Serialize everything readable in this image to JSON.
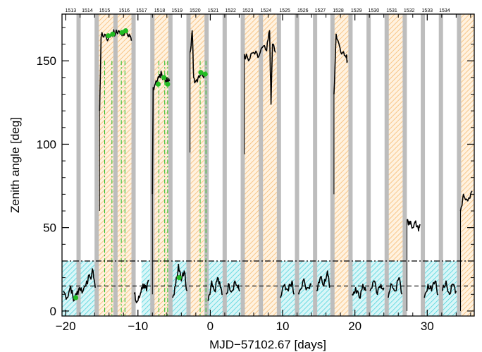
{
  "chart_data": {
    "type": "line",
    "title": "",
    "xlabel": "MJD−57102.67 [days]",
    "ylabel": "Zenith angle [deg]",
    "xlim": [
      -20.5,
      36.5
    ],
    "ylim": [
      -3,
      178
    ],
    "x_ticks": [
      -20,
      -10,
      0,
      10,
      20,
      30
    ],
    "x_tick_labels": [
      "−20",
      "−10",
      "0",
      "10",
      "20",
      "30"
    ],
    "y_ticks": [
      0,
      50,
      100,
      150
    ],
    "y_tick_labels": [
      "0",
      "50",
      "100",
      "150"
    ],
    "grid": false,
    "legend": "none",
    "run_numbers": [
      "1513",
      "1514",
      "1515",
      "1516",
      "1517",
      "1518",
      "1519",
      "1520",
      "1521",
      "1522",
      "1523",
      "1524",
      "1525",
      "1526",
      "1527",
      "1528",
      "1529",
      "1530",
      "1531",
      "1532",
      "1533",
      "1534"
    ],
    "run_label_x": [
      -19.3,
      -17.0,
      -14.6,
      -11.9,
      -9.5,
      -7.0,
      -4.6,
      -2.1,
      0.4,
      2.8,
      5.2,
      7.7,
      10.3,
      12.8,
      15.2,
      17.7,
      20.2,
      22.6,
      25.1,
      27.5,
      30.0,
      32.4
    ],
    "gray_bands": [
      [
        -18.5,
        -18.0
      ],
      [
        -16.0,
        -15.5
      ],
      [
        -13.4,
        -13.0
      ],
      [
        -10.9,
        -10.5
      ],
      [
        -8.3,
        -7.9
      ],
      [
        -5.8,
        -5.4
      ],
      [
        -3.3,
        -2.9
      ],
      [
        -0.8,
        -0.4
      ],
      [
        1.7,
        2.1
      ],
      [
        4.2,
        4.6
      ],
      [
        6.7,
        7.1
      ],
      [
        9.2,
        9.6
      ],
      [
        11.7,
        12.1
      ],
      [
        14.2,
        14.6
      ],
      [
        16.6,
        17.0
      ],
      [
        19.1,
        19.5
      ],
      [
        21.6,
        22.0
      ],
      [
        24.1,
        24.5
      ],
      [
        26.6,
        27.0
      ],
      [
        29.1,
        29.5
      ],
      [
        31.6,
        32.0
      ],
      [
        34.1,
        34.5
      ]
    ],
    "orange_hatch_regions": [
      [
        -15.5,
        -10.9
      ],
      [
        -7.9,
        -5.8
      ],
      [
        -2.9,
        -0.8
      ],
      [
        4.6,
        9.2
      ],
      [
        17.0,
        19.1
      ],
      [
        24.5,
        26.6
      ],
      [
        34.5,
        36.5
      ]
    ],
    "cyan_hatch_y_range": [
      0,
      30
    ],
    "cyan_hatch_regions": [
      [
        -20.5,
        -15.5
      ],
      [
        -9.5,
        -7.9
      ],
      [
        -5.4,
        -2.9
      ],
      [
        -0.8,
        4.2
      ],
      [
        9.6,
        14.2
      ],
      [
        14.6,
        16.6
      ],
      [
        19.5,
        21.6
      ],
      [
        22.0,
        24.1
      ],
      [
        24.5,
        26.6
      ],
      [
        29.5,
        31.6
      ],
      [
        32.0,
        34.1
      ]
    ],
    "green_dashed_x": [
      -14.6,
      -13.6,
      -12.3,
      -11.8,
      -7.1,
      -6.3,
      -5.9,
      -1.4,
      -0.6
    ],
    "hlines": [
      {
        "y": 30,
        "style": "dash-dot"
      },
      {
        "y": 15,
        "style": "dash"
      }
    ],
    "series": [
      {
        "color": "#000000",
        "segments": [
          {
            "x": [
              -20.3,
              -19.8,
              -19.3,
              -18.9,
              -18.5,
              -18.1,
              -17.6,
              -17.1,
              -16.6,
              -16.2,
              -15.9
            ],
            "y": [
              12,
              8,
              15,
              6,
              10,
              14,
              12,
              18,
              20,
              24,
              14
            ]
          },
          {
            "x": [
              -15.3,
              -15.1,
              -14.6,
              -14.1,
              -13.6,
              -13.1,
              -12.7,
              -12.2,
              -11.7,
              -11.2,
              -10.9
            ],
            "y": [
              120,
              164,
              166,
              163,
              167,
              166,
              168,
              165,
              169,
              166,
              162
            ]
          },
          {
            "x": [
              -10.5,
              -10.2,
              -9.8,
              -9.5,
              -9.1,
              -8.8,
              -8.5
            ],
            "y": [
              10,
              5,
              8,
              14,
              16,
              12,
              18
            ]
          },
          {
            "x": [
              -8.0,
              -7.9,
              -7.5,
              -7.1,
              -6.7,
              -6.3,
              -5.9,
              -5.6
            ],
            "y": [
              70,
              134,
              138,
              140,
              142,
              139,
              137,
              138
            ]
          },
          {
            "x": [
              -5.2,
              -4.8,
              -4.4,
              -4.0,
              -3.6,
              -3.2
            ],
            "y": [
              8,
              15,
              28,
              18,
              24,
              12
            ]
          },
          {
            "x": [
              -2.8,
              -2.5,
              -2.3,
              -2.0,
              -1.6,
              -1.2,
              -0.8
            ],
            "y": [
              155,
              168,
              140,
              138,
              141,
              143,
              142
            ]
          },
          {
            "x": [
              -0.3,
              0.2,
              0.6,
              1.0,
              1.4,
              1.7
            ],
            "y": [
              6,
              18,
              12,
              20,
              14,
              10
            ]
          },
          {
            "x": [
              2.2,
              2.6,
              3.0,
              3.4,
              3.8,
              4.1
            ],
            "y": [
              10,
              16,
              12,
              18,
              14,
              12
            ]
          },
          {
            "x": [
              4.7,
              5.3,
              6.0,
              6.6,
              7.2,
              7.8,
              8.2,
              8.4,
              8.6,
              9.0
            ],
            "y": [
              154,
              150,
              155,
              152,
              158,
              156,
              168,
              124,
              160,
              155
            ]
          },
          {
            "x": [
              9.7,
              10.3,
              10.8,
              11.3,
              11.6
            ],
            "y": [
              8,
              16,
              12,
              18,
              10
            ]
          },
          {
            "x": [
              12.2,
              12.8,
              13.4,
              14.0
            ],
            "y": [
              10,
              18,
              14,
              16
            ]
          },
          {
            "x": [
              14.7,
              15.2,
              15.7,
              16.2,
              16.5
            ],
            "y": [
              12,
              20,
              15,
              24,
              14
            ]
          },
          {
            "x": [
              17.1,
              17.4,
              17.8,
              18.3,
              18.8,
              19.0
            ],
            "y": [
              130,
              166,
              160,
              155,
              152,
              150
            ]
          },
          {
            "x": [
              19.6,
              20.1,
              20.6,
              21.1,
              21.5
            ],
            "y": [
              10,
              14,
              8,
              16,
              12
            ]
          },
          {
            "x": [
              22.1,
              22.6,
              23.1,
              23.6,
              24.0
            ],
            "y": [
              12,
              18,
              10,
              16,
              14
            ]
          },
          {
            "x": [
              24.6,
              25.1,
              25.6,
              26.1,
              26.5
            ],
            "y": [
              8,
              16,
              12,
              20,
              10
            ]
          },
          {
            "x": [
              27.2,
              27.6,
              28.0,
              28.4,
              28.8,
              29.0
            ],
            "y": [
              55,
              52,
              50,
              54,
              48,
              52
            ]
          },
          {
            "x": [
              29.6,
              30.1,
              30.6,
              31.1,
              31.5
            ],
            "y": [
              8,
              16,
              12,
              18,
              10
            ]
          },
          {
            "x": [
              32.1,
              32.6,
              33.1,
              33.6,
              34.0
            ],
            "y": [
              12,
              18,
              10,
              16,
              12
            ]
          },
          {
            "x": [
              34.6,
              35.0,
              35.6,
              36.2
            ],
            "y": [
              60,
              70,
              66,
              72
            ]
          }
        ]
      },
      {
        "color": "#22bb22",
        "style": "dots",
        "x": [
          -18.6,
          -14.1,
          -13.5,
          -12.2,
          -11.7,
          -7.2,
          -6.4,
          -5.9,
          -4.3,
          -1.3,
          -0.7
        ],
        "y": [
          8,
          165,
          166,
          167,
          168,
          136,
          140,
          136,
          20,
          143,
          142
        ]
      }
    ]
  }
}
